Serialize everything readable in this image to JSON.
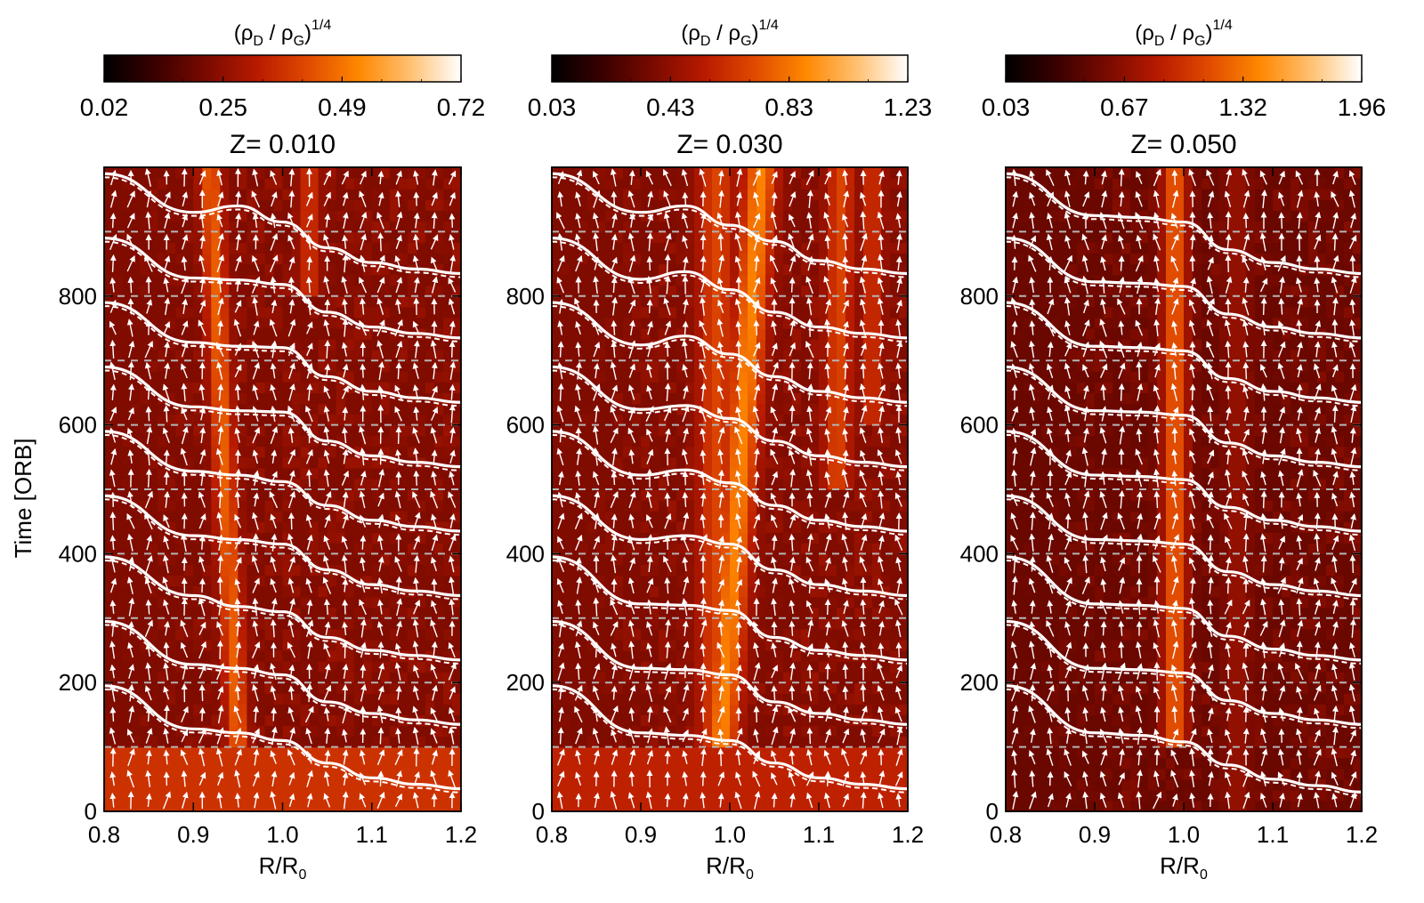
{
  "colorbar": {
    "label_base": "(ρ",
    "label_sub1": "D",
    "label_mid": " / ρ",
    "label_sub2": "G",
    "label_close": ")",
    "label_sup": "1/4",
    "colormap": [
      "#000000",
      "#3a0000",
      "#7a0a00",
      "#b81a00",
      "#e04a00",
      "#ff8800",
      "#ffc070",
      "#ffffff"
    ]
  },
  "shared_axes": {
    "ylabel": "Time [ORB]",
    "xlabel_base": "R/R",
    "xlabel_sub": "0"
  },
  "chart_data": [
    {
      "type": "heatmap",
      "title": "Z= 0.010",
      "xlim": [
        0.8,
        1.2
      ],
      "ylim": [
        0,
        1000
      ],
      "x_ticks": [
        0.8,
        0.9,
        1.0,
        1.1,
        1.2
      ],
      "x_tick_labels": [
        "0.8",
        "0.9",
        "1.0",
        "1.1",
        "1.2"
      ],
      "y_ticks": [
        0,
        200,
        400,
        600,
        800
      ],
      "y_tick_labels": [
        "0",
        "200",
        "400",
        "600",
        "800"
      ],
      "colorbar_ticks": [
        "0.02",
        "0.25",
        "0.49",
        "0.72"
      ],
      "colorbar_range": [
        0.02,
        0.72
      ],
      "dashed_reference_times": [
        100,
        200,
        300,
        400,
        500,
        600,
        700,
        800,
        900
      ],
      "background_level": 0.3,
      "bands": [
        {
          "r_start": 0.95,
          "drift_per_1000": 0.035,
          "width": 0.012,
          "level": 0.62,
          "t_start": 100
        },
        {
          "r_start": 1.03,
          "drift_per_1000": 0.0,
          "width": 0.012,
          "level": 0.5,
          "t_start": 800
        }
      ],
      "bottom_band": {
        "t_max": 95,
        "level": 0.5
      },
      "lines": [
        {
          "t0": 100,
          "r": [
            0.8,
            0.9,
            0.95,
            1.0,
            1.05,
            1.1,
            1.15,
            1.2
          ],
          "t": [
            195,
            128,
            122,
            110,
            75,
            52,
            42,
            35
          ]
        },
        {
          "t0": 200,
          "r": [
            0.8,
            0.9,
            0.95,
            1.0,
            1.05,
            1.1,
            1.15,
            1.2
          ],
          "t": [
            295,
            228,
            222,
            212,
            170,
            152,
            142,
            135
          ]
        },
        {
          "t0": 300,
          "r": [
            0.8,
            0.9,
            0.95,
            1.0,
            1.05,
            1.1,
            1.15,
            1.2
          ],
          "t": [
            395,
            335,
            318,
            310,
            270,
            250,
            242,
            235
          ]
        },
        {
          "t0": 400,
          "r": [
            0.8,
            0.9,
            0.95,
            1.0,
            1.05,
            1.1,
            1.15,
            1.2
          ],
          "t": [
            490,
            428,
            422,
            415,
            375,
            352,
            342,
            335
          ]
        },
        {
          "t0": 500,
          "r": [
            0.8,
            0.9,
            0.95,
            1.0,
            1.05,
            1.1,
            1.15,
            1.2
          ],
          "t": [
            590,
            528,
            522,
            512,
            475,
            452,
            442,
            435
          ]
        },
        {
          "t0": 600,
          "r": [
            0.8,
            0.9,
            0.95,
            1.0,
            1.05,
            1.1,
            1.15,
            1.2
          ],
          "t": [
            690,
            628,
            622,
            620,
            575,
            552,
            542,
            535
          ]
        },
        {
          "t0": 700,
          "r": [
            0.8,
            0.9,
            0.95,
            1.0,
            1.05,
            1.1,
            1.15,
            1.2
          ],
          "t": [
            790,
            728,
            722,
            720,
            675,
            652,
            642,
            635
          ]
        },
        {
          "t0": 800,
          "r": [
            0.8,
            0.9,
            0.95,
            1.0,
            1.05,
            1.1,
            1.15,
            1.2
          ],
          "t": [
            890,
            828,
            825,
            818,
            775,
            752,
            742,
            735
          ]
        },
        {
          "t0": 900,
          "r": [
            0.8,
            0.9,
            0.95,
            1.0,
            1.05,
            1.1,
            1.15,
            1.2
          ],
          "t": [
            990,
            930,
            940,
            915,
            875,
            852,
            842,
            835
          ]
        }
      ]
    },
    {
      "type": "heatmap",
      "title": "Z= 0.030",
      "xlim": [
        0.8,
        1.2
      ],
      "ylim": [
        0,
        1000
      ],
      "x_ticks": [
        0.8,
        0.9,
        1.0,
        1.1,
        1.2
      ],
      "x_tick_labels": [
        "0.8",
        "0.9",
        "1.0",
        "1.1",
        "1.2"
      ],
      "y_ticks": [
        0,
        200,
        400,
        600,
        800
      ],
      "y_tick_labels": [
        "0",
        "200",
        "400",
        "600",
        "800"
      ],
      "colorbar_ticks": [
        "0.03",
        "0.43",
        "0.83",
        "1.23"
      ],
      "colorbar_range": [
        0.03,
        1.23
      ],
      "dashed_reference_times": [
        100,
        200,
        300,
        400,
        500,
        600,
        700,
        800,
        900
      ],
      "background_level": 0.3,
      "bands": [
        {
          "r_start": 0.99,
          "drift_per_1000": -0.05,
          "width": 0.018,
          "level": 0.7,
          "t_start": 100
        },
        {
          "r_start": 0.985,
          "drift_per_1000": 0.0,
          "width": 0.02,
          "level": 0.55,
          "t_start": 100
        },
        {
          "r_start": 1.12,
          "drift_per_1000": -0.01,
          "width": 0.015,
          "level": 0.55,
          "t_start": 500
        },
        {
          "r_start": 1.16,
          "drift_per_1000": 0.0,
          "width": 0.012,
          "level": 0.5,
          "t_start": 600
        }
      ],
      "bottom_band": {
        "t_max": 95,
        "level": 0.45
      },
      "lines": [
        {
          "t0": 100,
          "r": [
            0.8,
            0.9,
            0.95,
            1.0,
            1.05,
            1.1,
            1.15,
            1.2
          ],
          "t": [
            195,
            122,
            118,
            110,
            75,
            52,
            42,
            35
          ]
        },
        {
          "t0": 200,
          "r": [
            0.8,
            0.9,
            0.95,
            1.0,
            1.05,
            1.1,
            1.15,
            1.2
          ],
          "t": [
            295,
            222,
            220,
            212,
            170,
            152,
            142,
            135
          ]
        },
        {
          "t0": 300,
          "r": [
            0.8,
            0.9,
            0.95,
            1.0,
            1.05,
            1.1,
            1.15,
            1.2
          ],
          "t": [
            395,
            322,
            320,
            312,
            270,
            250,
            242,
            235
          ]
        },
        {
          "t0": 400,
          "r": [
            0.8,
            0.9,
            0.95,
            1.0,
            1.05,
            1.1,
            1.15,
            1.2
          ],
          "t": [
            490,
            422,
            428,
            415,
            375,
            352,
            342,
            335
          ]
        },
        {
          "t0": 500,
          "r": [
            0.8,
            0.9,
            0.95,
            1.0,
            1.05,
            1.1,
            1.15,
            1.2
          ],
          "t": [
            590,
            522,
            530,
            510,
            475,
            452,
            442,
            435
          ]
        },
        {
          "t0": 600,
          "r": [
            0.8,
            0.9,
            0.95,
            1.0,
            1.05,
            1.1,
            1.15,
            1.2
          ],
          "t": [
            690,
            624,
            630,
            610,
            575,
            552,
            542,
            535
          ]
        },
        {
          "t0": 700,
          "r": [
            0.8,
            0.9,
            0.95,
            1.0,
            1.05,
            1.1,
            1.15,
            1.2
          ],
          "t": [
            790,
            724,
            738,
            710,
            675,
            652,
            642,
            635
          ]
        },
        {
          "t0": 800,
          "r": [
            0.8,
            0.9,
            0.95,
            1.0,
            1.05,
            1.1,
            1.15,
            1.2
          ],
          "t": [
            890,
            826,
            838,
            810,
            775,
            752,
            742,
            735
          ]
        },
        {
          "t0": 900,
          "r": [
            0.8,
            0.9,
            0.95,
            1.0,
            1.05,
            1.1,
            1.15,
            1.2
          ],
          "t": [
            990,
            930,
            940,
            910,
            885,
            855,
            842,
            835
          ]
        }
      ]
    },
    {
      "type": "heatmap",
      "title": "Z= 0.050",
      "xlim": [
        0.8,
        1.2
      ],
      "ylim": [
        0,
        1000
      ],
      "x_ticks": [
        0.8,
        0.9,
        1.0,
        1.1,
        1.2
      ],
      "x_tick_labels": [
        "0.8",
        "0.9",
        "1.0",
        "1.1",
        "1.2"
      ],
      "y_ticks": [
        0,
        200,
        400,
        600,
        800
      ],
      "y_tick_labels": [
        "0",
        "200",
        "400",
        "600",
        "800"
      ],
      "colorbar_ticks": [
        "0.03",
        "0.67",
        "1.32",
        "1.96"
      ],
      "colorbar_range": [
        0.03,
        1.96
      ],
      "dashed_reference_times": [
        100,
        200,
        300,
        400,
        500,
        600,
        700,
        800,
        900
      ],
      "background_level": 0.25,
      "bands": [
        {
          "r_start": 0.99,
          "drift_per_1000": 0.0,
          "width": 0.014,
          "level": 0.62,
          "t_start": 100
        },
        {
          "r_start": 1.06,
          "drift_per_1000": 0.0,
          "width": 0.015,
          "level": 0.35,
          "t_start": 0
        }
      ],
      "bottom_band": {
        "t_max": 0,
        "level": 0.3
      },
      "lines": [
        {
          "t0": 100,
          "r": [
            0.8,
            0.9,
            0.95,
            1.0,
            1.05,
            1.1,
            1.15,
            1.2
          ],
          "t": [
            195,
            122,
            118,
            108,
            72,
            50,
            40,
            30
          ]
        },
        {
          "t0": 200,
          "r": [
            0.8,
            0.9,
            0.95,
            1.0,
            1.05,
            1.1,
            1.15,
            1.2
          ],
          "t": [
            295,
            222,
            220,
            215,
            172,
            152,
            142,
            135
          ]
        },
        {
          "t0": 300,
          "r": [
            0.8,
            0.9,
            0.95,
            1.0,
            1.05,
            1.1,
            1.15,
            1.2
          ],
          "t": [
            395,
            322,
            320,
            315,
            272,
            252,
            242,
            235
          ]
        },
        {
          "t0": 400,
          "r": [
            0.8,
            0.9,
            0.95,
            1.0,
            1.05,
            1.1,
            1.15,
            1.2
          ],
          "t": [
            490,
            422,
            420,
            415,
            372,
            352,
            342,
            335
          ]
        },
        {
          "t0": 500,
          "r": [
            0.8,
            0.9,
            0.95,
            1.0,
            1.05,
            1.1,
            1.15,
            1.2
          ],
          "t": [
            590,
            522,
            520,
            515,
            472,
            452,
            442,
            435
          ]
        },
        {
          "t0": 600,
          "r": [
            0.8,
            0.9,
            0.95,
            1.0,
            1.05,
            1.1,
            1.15,
            1.2
          ],
          "t": [
            690,
            622,
            620,
            615,
            572,
            552,
            542,
            535
          ]
        },
        {
          "t0": 700,
          "r": [
            0.8,
            0.9,
            0.95,
            1.0,
            1.05,
            1.1,
            1.15,
            1.2
          ],
          "t": [
            790,
            722,
            720,
            715,
            672,
            652,
            642,
            635
          ]
        },
        {
          "t0": 800,
          "r": [
            0.8,
            0.9,
            0.95,
            1.0,
            1.05,
            1.1,
            1.15,
            1.2
          ],
          "t": [
            890,
            822,
            820,
            815,
            772,
            752,
            742,
            735
          ]
        },
        {
          "t0": 900,
          "r": [
            0.8,
            0.9,
            0.95,
            1.0,
            1.05,
            1.1,
            1.15,
            1.2
          ],
          "t": [
            990,
            925,
            922,
            915,
            872,
            852,
            842,
            835
          ]
        }
      ]
    }
  ]
}
